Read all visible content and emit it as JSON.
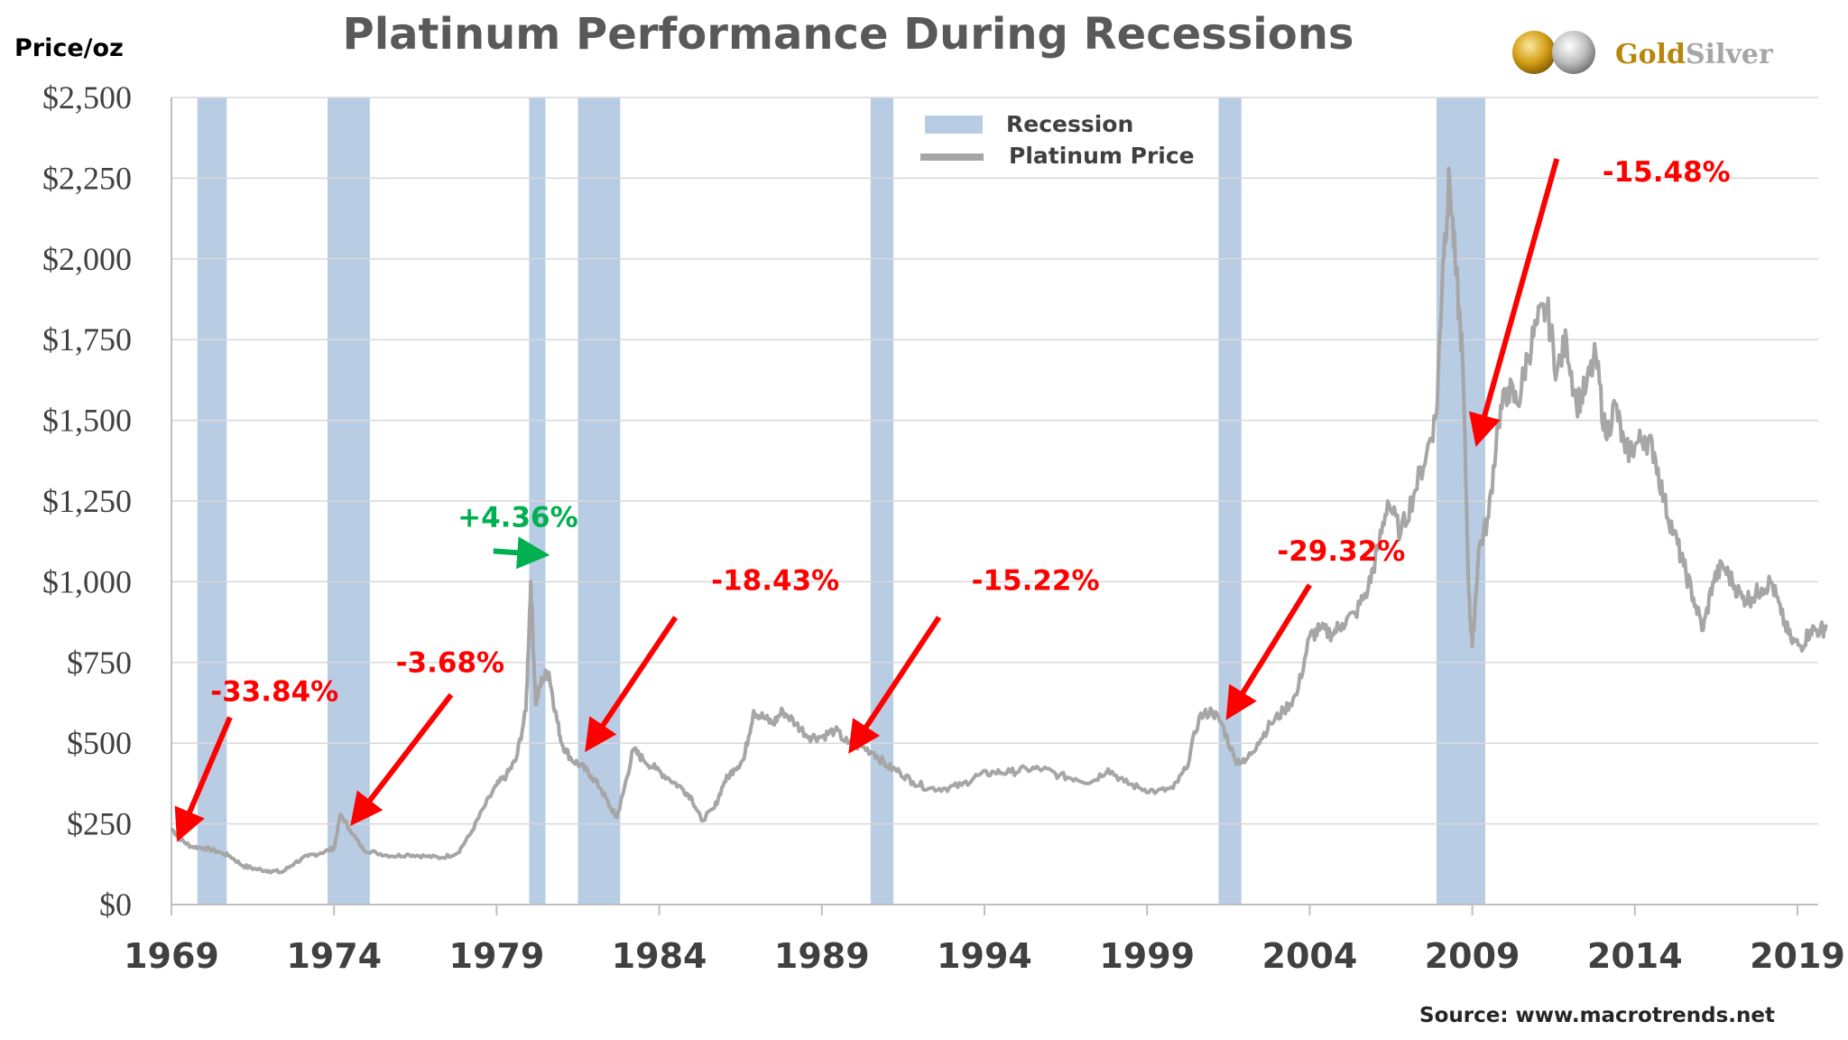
{
  "chart_data": {
    "type": "line",
    "title": "Platinum Performance During Recessions",
    "ylabel": "Price/oz",
    "source": "Source: www.macrotrends.net",
    "brand": {
      "part1": "Gold",
      "part2": "Silver"
    },
    "ylim": [
      0,
      2500
    ],
    "xlim": [
      1969,
      2019.9
    ],
    "y_ticks": [
      {
        "value": 0,
        "label": "$0"
      },
      {
        "value": 250,
        "label": "$250"
      },
      {
        "value": 500,
        "label": "$500"
      },
      {
        "value": 750,
        "label": "$750"
      },
      {
        "value": 1000,
        "label": "$1,000"
      },
      {
        "value": 1250,
        "label": "$1,250"
      },
      {
        "value": 1500,
        "label": "$1,500"
      },
      {
        "value": 1750,
        "label": "$1,750"
      },
      {
        "value": 2000,
        "label": "$2,000"
      },
      {
        "value": 2250,
        "label": "$2,250"
      },
      {
        "value": 2500,
        "label": "$2,500"
      }
    ],
    "x_ticks": [
      {
        "value": 1969,
        "label": "1969"
      },
      {
        "value": 1974,
        "label": "1974"
      },
      {
        "value": 1979,
        "label": "1979"
      },
      {
        "value": 1984,
        "label": "1984"
      },
      {
        "value": 1989,
        "label": "1989"
      },
      {
        "value": 1994,
        "label": "1994"
      },
      {
        "value": 1999,
        "label": "1999"
      },
      {
        "value": 2004,
        "label": "2004"
      },
      {
        "value": 2009,
        "label": "2009"
      },
      {
        "value": 2014,
        "label": "2014"
      },
      {
        "value": 2019,
        "label": "2019"
      }
    ],
    "grid": true,
    "legend_position": "top-center",
    "legend": [
      {
        "name": "Recession",
        "kind": "box",
        "color": "#b8cce4"
      },
      {
        "name": "Platinum Price",
        "kind": "line",
        "color": "#a6a6a6"
      }
    ],
    "recessions": [
      {
        "start": 1969.8,
        "end": 1970.7
      },
      {
        "start": 1973.8,
        "end": 1975.1
      },
      {
        "start": 1980.0,
        "end": 1980.5
      },
      {
        "start": 1981.5,
        "end": 1982.8
      },
      {
        "start": 1990.5,
        "end": 1991.2
      },
      {
        "start": 2001.2,
        "end": 2001.9
      },
      {
        "start": 2007.9,
        "end": 2009.4
      }
    ],
    "series": [
      {
        "name": "Platinum Price",
        "color": "#a6a6a6",
        "x": [
          1969.0,
          1969.3,
          1969.6,
          1970.0,
          1970.4,
          1970.8,
          1971.2,
          1971.6,
          1972.0,
          1972.4,
          1972.8,
          1973.2,
          1973.6,
          1974.0,
          1974.2,
          1974.5,
          1974.9,
          1975.3,
          1975.8,
          1976.3,
          1976.8,
          1977.3,
          1977.8,
          1978.2,
          1978.6,
          1979.0,
          1979.3,
          1979.6,
          1979.9,
          1980.05,
          1980.2,
          1980.4,
          1980.6,
          1980.8,
          1981.0,
          1981.3,
          1981.6,
          1981.9,
          1982.2,
          1982.5,
          1982.7,
          1982.9,
          1983.2,
          1983.5,
          1983.9,
          1984.3,
          1984.7,
          1985.0,
          1985.3,
          1985.7,
          1986.0,
          1986.3,
          1986.6,
          1986.9,
          1987.2,
          1987.5,
          1987.8,
          1988.2,
          1988.6,
          1989.0,
          1989.4,
          1989.8,
          1990.2,
          1990.6,
          1991.0,
          1991.4,
          1991.8,
          1992.3,
          1992.8,
          1993.3,
          1993.8,
          1994.3,
          1994.8,
          1995.3,
          1995.8,
          1996.3,
          1996.8,
          1997.3,
          1997.8,
          1998.3,
          1998.8,
          1999.3,
          1999.8,
          2000.2,
          2000.6,
          2001.0,
          2001.3,
          2001.7,
          2002.0,
          2002.4,
          2002.8,
          2003.2,
          2003.6,
          2004.0,
          2004.3,
          2004.7,
          2005.0,
          2005.4,
          2005.8,
          2006.1,
          2006.4,
          2006.8,
          2007.2,
          2007.6,
          2007.9,
          2008.1,
          2008.3,
          2008.5,
          2008.7,
          2008.9,
          2009.0,
          2009.2,
          2009.5,
          2009.8,
          2010.1,
          2010.4,
          2010.7,
          2011.0,
          2011.3,
          2011.6,
          2011.9,
          2012.2,
          2012.5,
          2012.8,
          2013.1,
          2013.4,
          2013.7,
          2014.0,
          2014.3,
          2014.6,
          2014.9,
          2015.2,
          2015.5,
          2015.8,
          2016.1,
          2016.4,
          2016.7,
          2017.0,
          2017.3,
          2017.6,
          2017.9,
          2018.2,
          2018.5,
          2018.8,
          2019.1,
          2019.4,
          2019.7,
          2019.9
        ],
        "values": [
          235,
          200,
          180,
          175,
          165,
          150,
          120,
          110,
          105,
          100,
          130,
          150,
          160,
          175,
          280,
          230,
          170,
          160,
          150,
          155,
          150,
          145,
          160,
          220,
          300,
          370,
          400,
          450,
          600,
          1000,
          620,
          700,
          720,
          600,
          500,
          450,
          430,
          400,
          360,
          300,
          270,
          350,
          480,
          450,
          420,
          390,
          360,
          330,
          260,
          300,
          380,
          420,
          450,
          600,
          580,
          560,
          600,
          560,
          520,
          520,
          540,
          500,
          490,
          470,
          430,
          410,
          380,
          360,
          360,
          370,
          400,
          410,
          410,
          420,
          420,
          400,
          390,
          380,
          420,
          380,
          360,
          350,
          360,
          420,
          580,
          600,
          560,
          450,
          440,
          500,
          560,
          600,
          650,
          830,
          850,
          840,
          870,
          900,
          980,
          1100,
          1250,
          1150,
          1270,
          1400,
          1520,
          2000,
          2250,
          1950,
          1700,
          950,
          800,
          1100,
          1200,
          1500,
          1600,
          1550,
          1700,
          1800,
          1850,
          1650,
          1750,
          1550,
          1600,
          1700,
          1450,
          1550,
          1400,
          1420,
          1450,
          1400,
          1250,
          1150,
          1050,
          950,
          850,
          1000,
          1050,
          1000,
          950,
          950,
          980,
          1000,
          900,
          820,
          800,
          850,
          850,
          860
        ]
      }
    ],
    "annotations": [
      {
        "label": "-33.84%",
        "color": "#ff0000",
        "text_x": 1970.2,
        "text_y": 630,
        "tail_x": 1970.8,
        "tail_y": 580,
        "head_x": 1969.3,
        "head_y": 225
      },
      {
        "label": "-3.68%",
        "color": "#ff0000",
        "text_x": 1975.9,
        "text_y": 720,
        "tail_x": 1977.6,
        "tail_y": 650,
        "head_x": 1974.7,
        "head_y": 270
      },
      {
        "label": "+4.36%",
        "color": "#00b050",
        "text_x": 1977.8,
        "text_y": 1170,
        "tail_x": 1978.9,
        "tail_y": 1095,
        "head_x": 1980.3,
        "head_y": 1085
      },
      {
        "label": "-18.43%",
        "color": "#ff0000",
        "text_x": 1985.6,
        "text_y": 975,
        "tail_x": 1984.5,
        "tail_y": 890,
        "head_x": 1981.9,
        "head_y": 500
      },
      {
        "label": "-15.22%",
        "color": "#ff0000",
        "text_x": 1993.6,
        "text_y": 975,
        "tail_x": 1992.6,
        "tail_y": 890,
        "head_x": 1990.0,
        "head_y": 495
      },
      {
        "label": "-29.32%",
        "color": "#ff0000",
        "text_x": 2003.0,
        "text_y": 1065,
        "tail_x": 2004.0,
        "tail_y": 990,
        "head_x": 2001.6,
        "head_y": 600
      },
      {
        "label": "-15.48%",
        "color": "#ff0000",
        "text_x": 2013.0,
        "text_y": 2240,
        "tail_x": 2011.6,
        "tail_y": 2310,
        "head_x": 2009.2,
        "head_y": 1450
      }
    ]
  }
}
